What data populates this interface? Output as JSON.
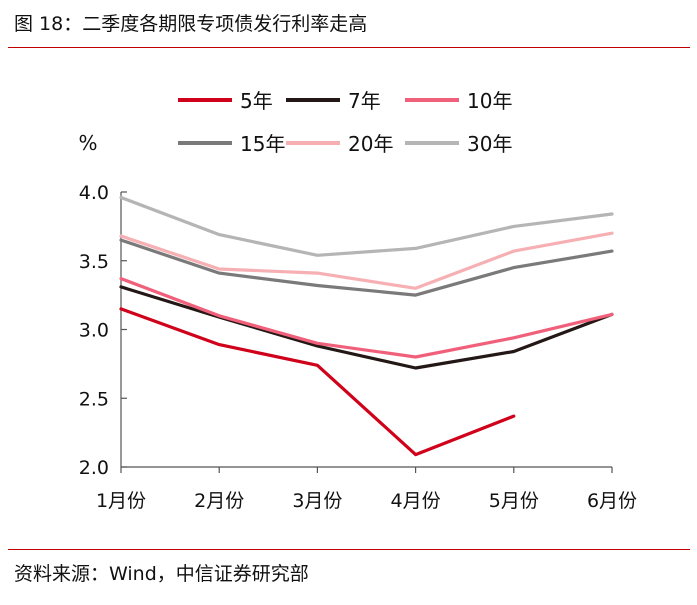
{
  "title": "图 18：二季度各期限专项债发行利率走高",
  "source": "资料来源：Wind，中信证券研究部",
  "chart_data": {
    "type": "line",
    "title": "图 18：二季度各期限专项债发行利率走高",
    "ylabel": "%",
    "xlabel": "",
    "categories": [
      "1月份",
      "2月份",
      "3月份",
      "4月份",
      "5月份",
      "6月份"
    ],
    "ylim": [
      2.0,
      4.0
    ],
    "yticks": [
      "2.0",
      "2.5",
      "3.0",
      "3.5",
      "4.0"
    ],
    "grid": false,
    "legend_position": "top",
    "series": [
      {
        "name": "5年",
        "color": "#d0021b",
        "values": [
          3.15,
          2.89,
          2.74,
          2.09,
          2.37,
          null
        ]
      },
      {
        "name": "7年",
        "color": "#231815",
        "values": [
          3.31,
          3.09,
          2.88,
          2.72,
          2.84,
          3.11
        ]
      },
      {
        "name": "10年",
        "color": "#f0607a",
        "values": [
          3.37,
          3.1,
          2.9,
          2.8,
          2.94,
          3.11
        ]
      },
      {
        "name": "15年",
        "color": "#7a7a7a",
        "values": [
          3.65,
          3.41,
          3.32,
          3.25,
          3.45,
          3.57
        ]
      },
      {
        "name": "20年",
        "color": "#f6b0b4",
        "values": [
          3.68,
          3.44,
          3.41,
          3.3,
          3.57,
          3.7
        ]
      },
      {
        "name": "30年",
        "color": "#b5b5b5",
        "values": [
          3.96,
          3.69,
          3.54,
          3.59,
          3.75,
          3.84
        ]
      }
    ]
  }
}
